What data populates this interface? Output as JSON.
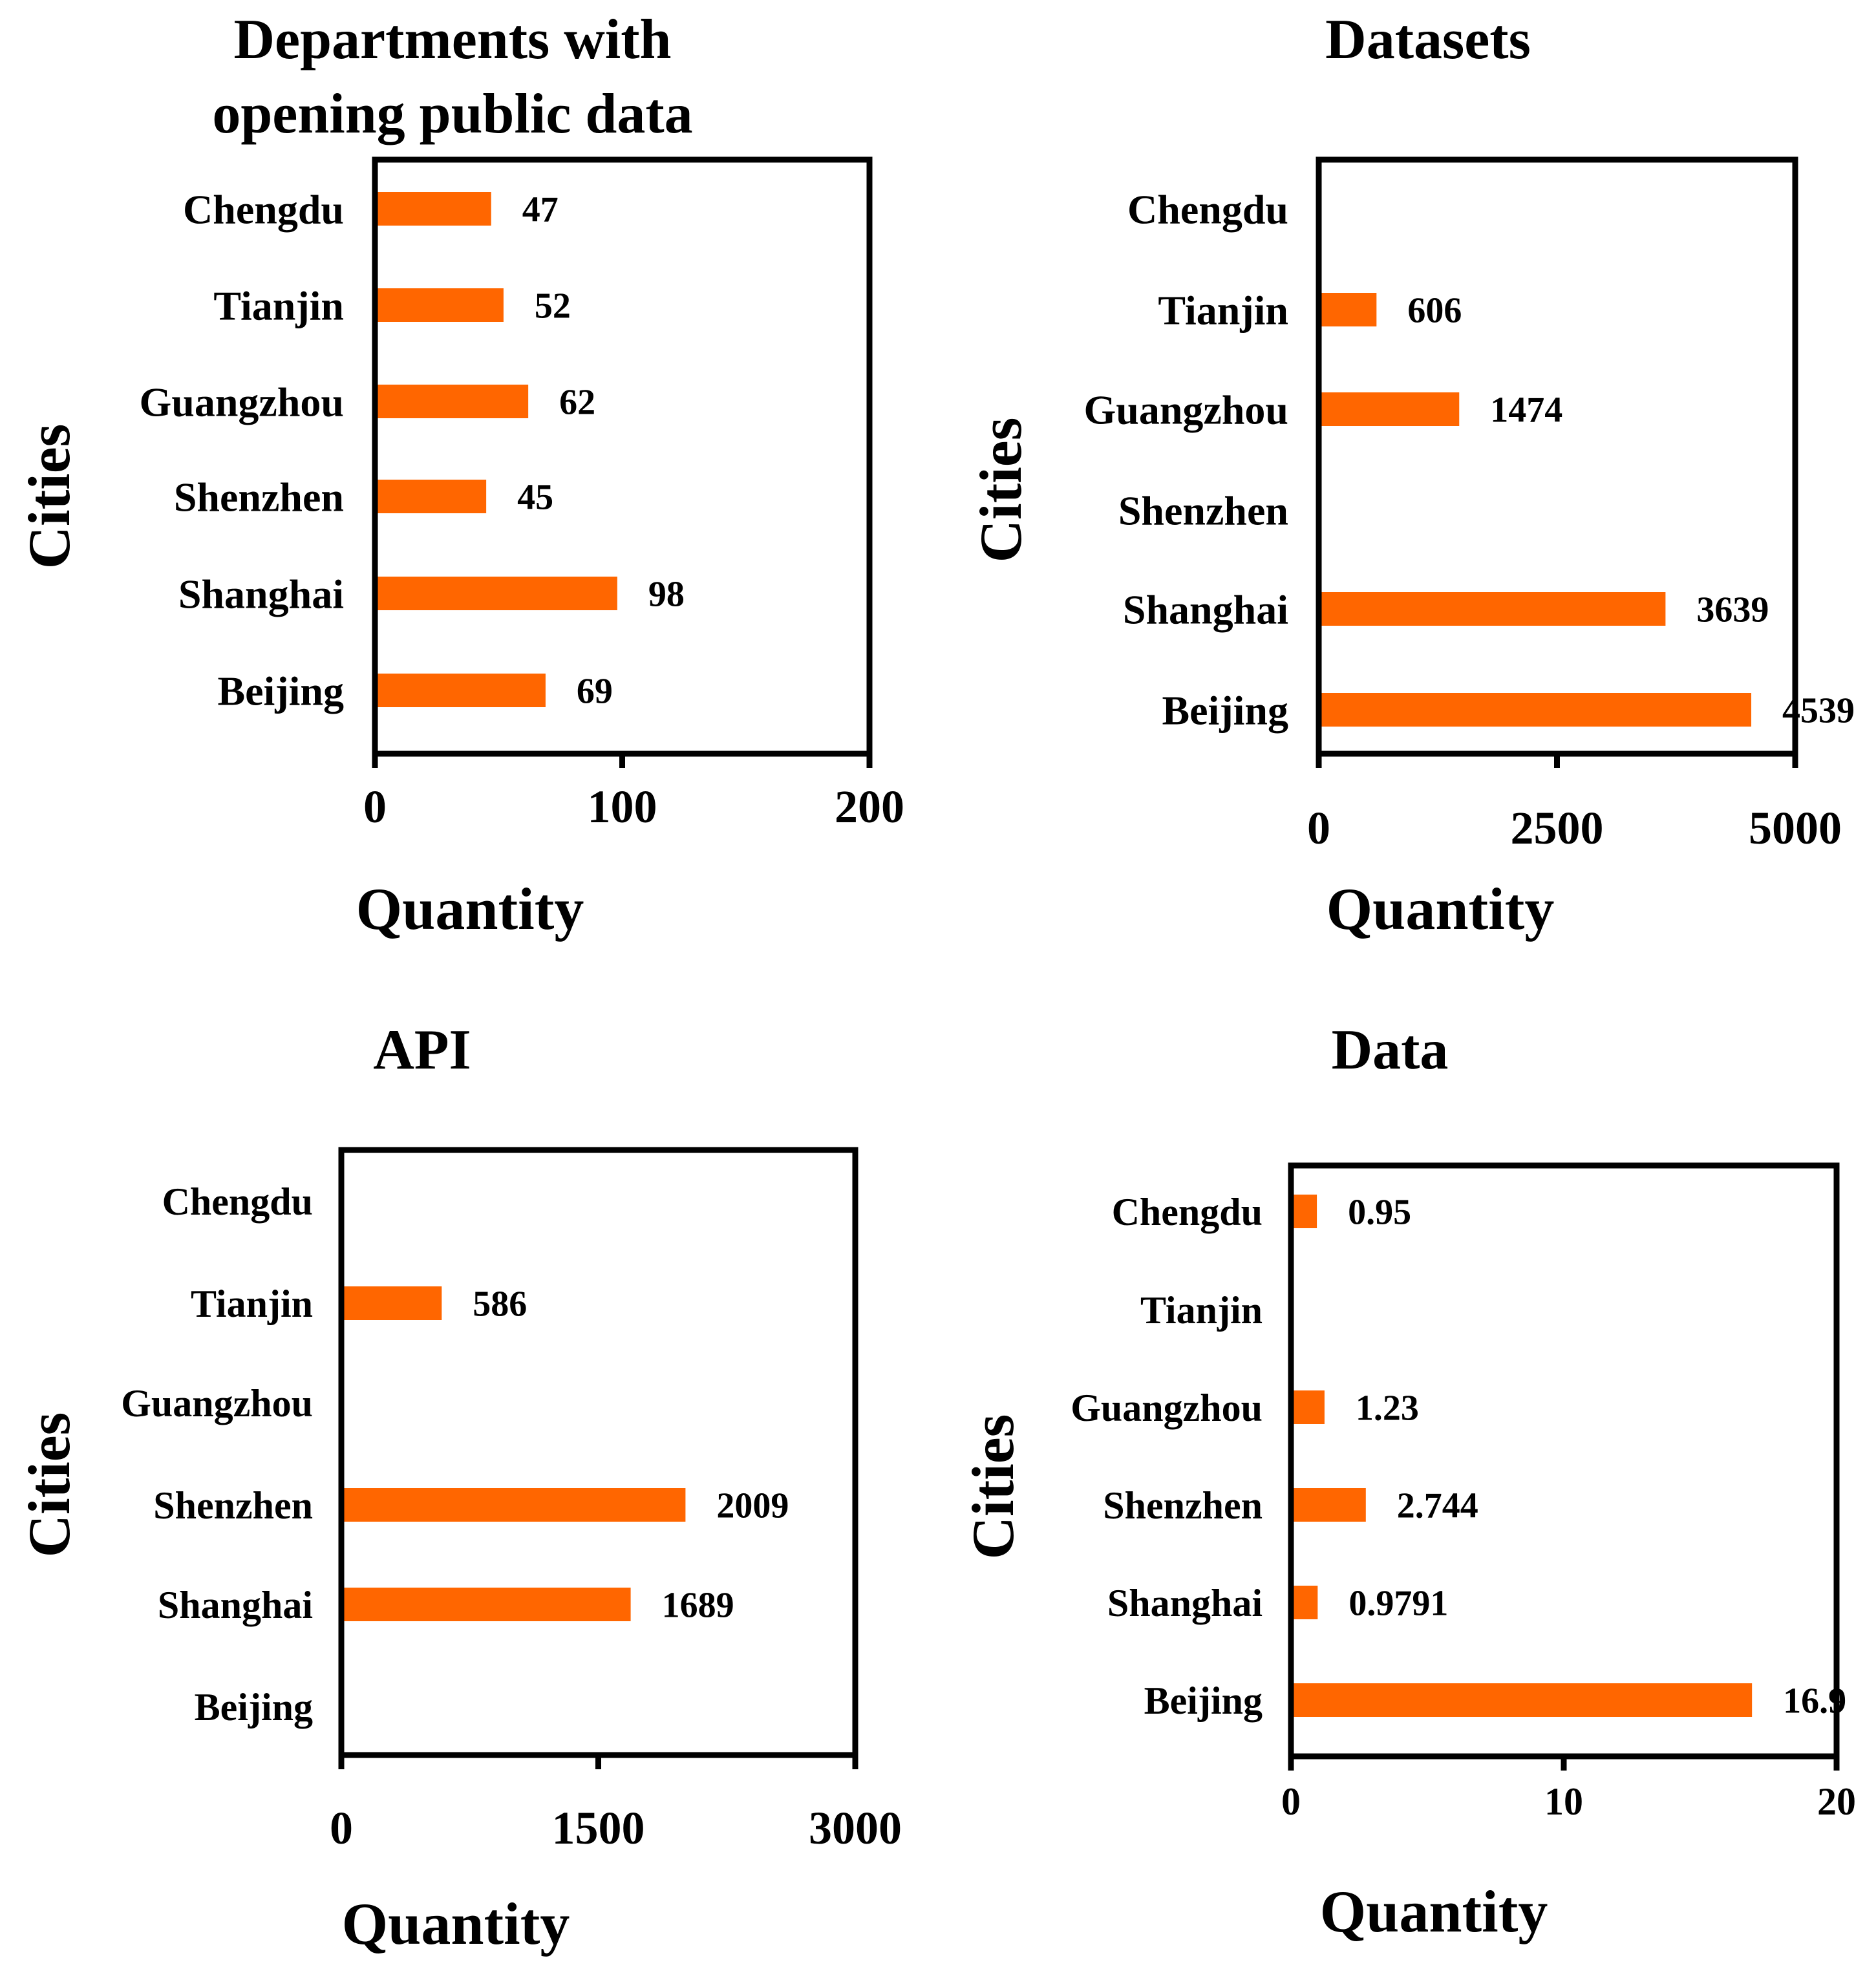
{
  "chart_data": [
    {
      "type": "bar",
      "orientation": "horizontal",
      "title": [
        "Departments with",
        "opening public data"
      ],
      "xlabel": "Quantity",
      "ylabel": "Cities",
      "categories": [
        "Beijing",
        "Shanghai",
        "Shenzhen",
        "Guangzhou",
        "Tianjin",
        "Chengdu"
      ],
      "values": [
        69,
        98,
        45,
        62,
        52,
        47
      ],
      "data_labels": [
        "69",
        "98",
        "45",
        "62",
        "52",
        "47"
      ],
      "xlim": [
        0,
        200
      ],
      "xticks": [
        "0",
        "100",
        "200"
      ],
      "bar_color": "#ff6600"
    },
    {
      "type": "bar",
      "orientation": "horizontal",
      "title": [
        "Datasets"
      ],
      "xlabel": "Quantity",
      "ylabel": "Cities",
      "categories": [
        "Beijing",
        "Shanghai",
        "Shenzhen",
        "Guangzhou",
        "Tianjin",
        "Chengdu"
      ],
      "values": [
        4539,
        3639,
        null,
        1474,
        606,
        null
      ],
      "data_labels": [
        "4539",
        "3639",
        "",
        "1474",
        "606",
        ""
      ],
      "xlim": [
        0,
        5000
      ],
      "xticks": [
        "0",
        "2500",
        "5000"
      ],
      "bar_color": "#ff6600"
    },
    {
      "type": "bar",
      "orientation": "horizontal",
      "title": [
        "API"
      ],
      "xlabel": "Quantity",
      "ylabel": "Cities",
      "categories": [
        "Beijing",
        "Shanghai",
        "Shenzhen",
        "Guangzhou",
        "Tianjin",
        "Chengdu"
      ],
      "values": [
        null,
        1689,
        2009,
        null,
        586,
        null
      ],
      "data_labels": [
        "",
        "1689",
        "2009",
        "",
        "586",
        ""
      ],
      "xlim": [
        0,
        3000
      ],
      "xticks": [
        "0",
        "1500",
        "3000"
      ],
      "bar_color": "#ff6600"
    },
    {
      "type": "bar",
      "orientation": "horizontal",
      "title": [
        "Data"
      ],
      "xlabel": "Quantity",
      "ylabel": "Cities",
      "categories": [
        "Beijing",
        "Shanghai",
        "Shenzhen",
        "Guangzhou",
        "Tianjin",
        "Chengdu"
      ],
      "values": [
        16.9,
        0.9791,
        2.744,
        1.23,
        null,
        0.95
      ],
      "data_labels": [
        "16.9",
        "0.9791",
        "2.744",
        "1.23",
        "",
        "0.95"
      ],
      "xlim": [
        0,
        20
      ],
      "xticks": [
        "0",
        "10",
        "20"
      ],
      "bar_color": "#ff6600"
    }
  ]
}
